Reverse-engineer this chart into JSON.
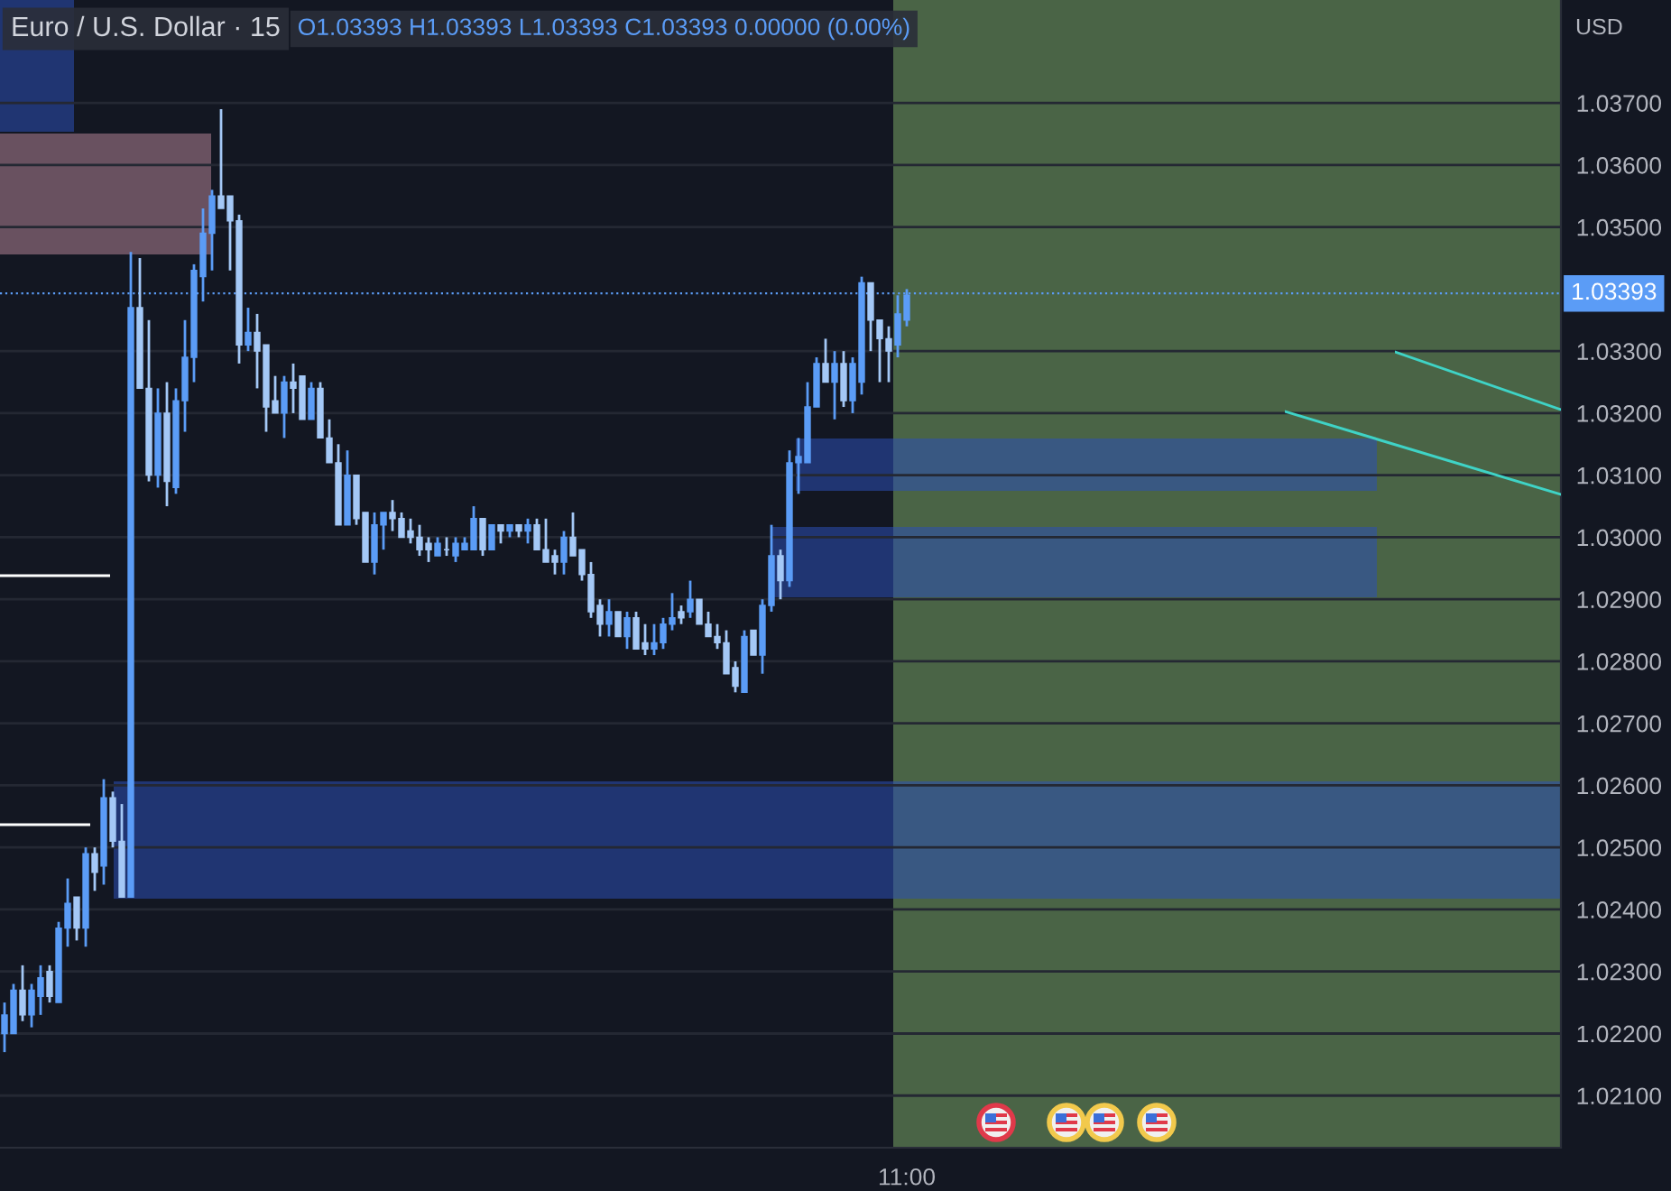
{
  "chart_data": {
    "type": "candlestick",
    "title": "Euro / U.S. Dollar · 15",
    "annotations": [
      "O1.03393 H1.03393 L1.03393 C1.03393 0.00000 (0.00%)"
    ],
    "ylabel": "USD",
    "categories": [
      null,
      null,
      null,
      null,
      null,
      null,
      null,
      null,
      null,
      null,
      null,
      null,
      null,
      null,
      null,
      null,
      null,
      null,
      null,
      null,
      null,
      null,
      null,
      null,
      null,
      null,
      null,
      null,
      null,
      null,
      null,
      null,
      null,
      null,
      null,
      null,
      null,
      null,
      null,
      null,
      null,
      null,
      null,
      null,
      null,
      null,
      null,
      null,
      null,
      null,
      null,
      null,
      null,
      null,
      null,
      null,
      null,
      null,
      null,
      null,
      null,
      null,
      null,
      null,
      null,
      null,
      null,
      null,
      null,
      null,
      null,
      null,
      null,
      null,
      null,
      null,
      null,
      null,
      null,
      null,
      null,
      null,
      null,
      null,
      null,
      null,
      null,
      null,
      null,
      null,
      null,
      null,
      null,
      null,
      null,
      null,
      null,
      null,
      null,
      null,
      "11:00",
      null,
      null,
      null,
      null,
      null,
      null,
      null,
      null,
      null,
      null,
      null,
      null,
      null,
      null,
      null,
      null,
      null,
      null,
      null,
      null,
      null,
      null,
      null,
      null,
      null,
      null,
      null,
      null,
      null,
      null,
      null,
      null,
      null,
      null,
      null,
      null,
      null,
      null,
      null,
      null,
      null,
      null,
      null,
      null,
      null,
      null,
      null,
      null,
      null,
      null,
      null,
      null,
      null,
      null,
      null,
      null,
      null,
      null,
      null,
      null,
      null,
      null,
      null,
      null,
      null,
      null,
      null,
      null,
      null,
      null,
      null,
      null
    ],
    "ohlc": [
      [
        1.022,
        1.0225,
        1.0217,
        1.0223
      ],
      [
        1.022,
        1.0228,
        1.022,
        1.0227
      ],
      [
        1.0227,
        1.0231,
        1.0222,
        1.0223
      ],
      [
        1.0223,
        1.0228,
        1.0221,
        1.0227
      ],
      [
        1.0226,
        1.0231,
        1.0223,
        1.0229
      ],
      [
        1.023,
        1.0231,
        1.0225,
        1.0226
      ],
      [
        1.0225,
        1.0238,
        1.0225,
        1.0237
      ],
      [
        1.0237,
        1.0245,
        1.0234,
        1.0241
      ],
      [
        1.0242,
        1.0242,
        1.0235,
        1.0237
      ],
      [
        1.0237,
        1.025,
        1.0234,
        1.0249
      ],
      [
        1.0249,
        1.025,
        1.0243,
        1.0246
      ],
      [
        1.0247,
        1.0261,
        1.0244,
        1.0258
      ],
      [
        1.0258,
        1.0259,
        1.025,
        1.0251
      ],
      [
        1.0251,
        1.0257,
        1.0242,
        1.0242
      ],
      [
        1.0242,
        1.0346,
        1.0242,
        1.0337
      ],
      [
        1.0337,
        1.0345,
        1.0324,
        1.0324
      ],
      [
        1.0324,
        1.0335,
        1.0309,
        1.031
      ],
      [
        1.031,
        1.0324,
        1.0308,
        1.032
      ],
      [
        1.032,
        1.0325,
        1.0305,
        1.0309
      ],
      [
        1.0308,
        1.0324,
        1.0307,
        1.0322
      ],
      [
        1.0322,
        1.0335,
        1.0317,
        1.0329
      ],
      [
        1.0329,
        1.0344,
        1.0325,
        1.0343
      ],
      [
        1.0342,
        1.0353,
        1.0338,
        1.0349
      ],
      [
        1.0349,
        1.0356,
        1.0343,
        1.0355
      ],
      [
        1.0355,
        1.0369,
        1.0353,
        1.0353
      ],
      [
        1.0355,
        1.0355,
        1.0343,
        1.0351
      ],
      [
        1.0351,
        1.0352,
        1.0328,
        1.0331
      ],
      [
        1.0331,
        1.0337,
        1.033,
        1.0333
      ],
      [
        1.0333,
        1.0336,
        1.0324,
        1.033
      ],
      [
        1.0331,
        1.0331,
        1.0317,
        1.0321
      ],
      [
        1.0322,
        1.0326,
        1.032,
        1.032
      ],
      [
        1.032,
        1.0326,
        1.0316,
        1.0325
      ],
      [
        1.0325,
        1.0328,
        1.032,
        1.0324
      ],
      [
        1.0326,
        1.0326,
        1.0319,
        1.0319
      ],
      [
        1.0319,
        1.0325,
        1.0319,
        1.0324
      ],
      [
        1.0324,
        1.0325,
        1.0316,
        1.0316
      ],
      [
        1.0316,
        1.0319,
        1.0312,
        1.0312
      ],
      [
        1.0312,
        1.0315,
        1.0302,
        1.0302
      ],
      [
        1.0302,
        1.0314,
        1.0302,
        1.031
      ],
      [
        1.031,
        1.031,
        1.0302,
        1.0303
      ],
      [
        1.0304,
        1.0304,
        1.0296,
        1.0296
      ],
      [
        1.0296,
        1.0304,
        1.0294,
        1.0302
      ],
      [
        1.0302,
        1.0304,
        1.0298,
        1.0304
      ],
      [
        1.0304,
        1.0306,
        1.0301,
        1.0303
      ],
      [
        1.0303,
        1.0304,
        1.03,
        1.03
      ],
      [
        1.0301,
        1.0303,
        1.0299,
        1.03
      ],
      [
        1.03,
        1.0302,
        1.0297,
        1.0298
      ],
      [
        1.0299,
        1.03,
        1.0296,
        1.0298
      ],
      [
        1.0297,
        1.03,
        1.0297,
        1.0299
      ],
      [
        1.0298,
        1.03,
        1.0297,
        1.0298
      ],
      [
        1.0297,
        1.03,
        1.0296,
        1.0299
      ],
      [
        1.0298,
        1.03,
        1.0298,
        1.0299
      ],
      [
        1.0298,
        1.0305,
        1.0298,
        1.0303
      ],
      [
        1.0303,
        1.0303,
        1.0297,
        1.0298
      ],
      [
        1.0298,
        1.0302,
        1.0298,
        1.0302
      ],
      [
        1.0302,
        1.0302,
        1.0299,
        1.0301
      ],
      [
        1.0301,
        1.0302,
        1.03,
        1.0302
      ],
      [
        1.0302,
        1.0302,
        1.03,
        1.0301
      ],
      [
        1.0301,
        1.0303,
        1.0299,
        1.0302
      ],
      [
        1.0302,
        1.0303,
        1.0298,
        1.0298
      ],
      [
        1.0298,
        1.0303,
        1.0296,
        1.0296
      ],
      [
        1.0297,
        1.0298,
        1.0294,
        1.0296
      ],
      [
        1.0296,
        1.0301,
        1.0294,
        1.03
      ],
      [
        1.03,
        1.0304,
        1.0297,
        1.0297
      ],
      [
        1.0298,
        1.0298,
        1.0293,
        1.0294
      ],
      [
        1.0294,
        1.0296,
        1.0287,
        1.0288
      ],
      [
        1.0289,
        1.029,
        1.0284,
        1.0286
      ],
      [
        1.0286,
        1.029,
        1.0284,
        1.0288
      ],
      [
        1.0288,
        1.0288,
        1.0284,
        1.0284
      ],
      [
        1.0284,
        1.0288,
        1.0282,
        1.0287
      ],
      [
        1.0287,
        1.0288,
        1.0282,
        1.0282
      ],
      [
        1.0283,
        1.0286,
        1.0281,
        1.0282
      ],
      [
        1.0282,
        1.0286,
        1.0281,
        1.0283
      ],
      [
        1.0283,
        1.0287,
        1.0282,
        1.0286
      ],
      [
        1.0286,
        1.0291,
        1.0285,
        1.0287
      ],
      [
        1.0288,
        1.0289,
        1.0286,
        1.0287
      ],
      [
        1.0288,
        1.0293,
        1.0287,
        1.029
      ],
      [
        1.029,
        1.029,
        1.0286,
        1.0286
      ],
      [
        1.0286,
        1.0288,
        1.0284,
        1.0284
      ],
      [
        1.0284,
        1.0286,
        1.0282,
        1.0283
      ],
      [
        1.0283,
        1.0285,
        1.0278,
        1.0278
      ],
      [
        1.0279,
        1.028,
        1.0275,
        1.0276
      ],
      [
        1.0275,
        1.0285,
        1.0275,
        1.0284
      ],
      [
        1.0285,
        1.0285,
        1.0281,
        1.0281
      ],
      [
        1.0281,
        1.029,
        1.0278,
        1.0289
      ],
      [
        1.0289,
        1.0302,
        1.0288,
        1.0297
      ],
      [
        1.0297,
        1.0298,
        1.029,
        1.0293
      ],
      [
        1.0293,
        1.0314,
        1.0292,
        1.0312
      ],
      [
        1.0312,
        1.0316,
        1.0307,
        1.0313
      ],
      [
        1.0312,
        1.0325,
        1.0312,
        1.0321
      ],
      [
        1.0321,
        1.0329,
        1.0321,
        1.0328
      ],
      [
        1.0328,
        1.0332,
        1.0325,
        1.0325
      ],
      [
        1.0325,
        1.033,
        1.0319,
        1.0328
      ],
      [
        1.0328,
        1.033,
        1.0321,
        1.0322
      ],
      [
        1.0322,
        1.0329,
        1.032,
        1.0328
      ],
      [
        1.0325,
        1.0342,
        1.0323,
        1.0341
      ],
      [
        1.0341,
        1.0341,
        1.033,
        1.0335
      ],
      [
        1.0335,
        1.0335,
        1.0325,
        1.0332
      ],
      [
        1.0332,
        1.0334,
        1.0325,
        1.033
      ],
      [
        1.0331,
        1.0339,
        1.0329,
        1.0336
      ],
      [
        1.0335,
        1.034,
        1.0334,
        1.0339
      ],
      null,
      null,
      null,
      null,
      null,
      null,
      null,
      null,
      null,
      null,
      null,
      null,
      null,
      null,
      null,
      null,
      null,
      null,
      null,
      null,
      null,
      null,
      null,
      null,
      null,
      null,
      null,
      null,
      null,
      null,
      null,
      null,
      null,
      null,
      null,
      null,
      null,
      null,
      null,
      null,
      null,
      null,
      null,
      null,
      null,
      null,
      null,
      null,
      null,
      null,
      null,
      null,
      null,
      null,
      null,
      null,
      null,
      null,
      null,
      null,
      null,
      null,
      null,
      null,
      null,
      null,
      null,
      null,
      null,
      null,
      null,
      null
    ],
    "colors": [
      "#5b9cf6",
      "#5b9cf6",
      "#a4c8f6",
      "#5b9cf6",
      "#5b9cf6",
      "#a4c8f6",
      "#5b9cf6",
      "#5b9cf6",
      "#a4c8f6",
      "#5b9cf6",
      "#a4c8f6",
      "#5b9cf6",
      "#a4c8f6",
      "#a4c8f6",
      "#5b9cf6",
      "#a4c8f6",
      "#a4c8f6",
      "#5b9cf6",
      "#a4c8f6",
      "#5b9cf6",
      "#5b9cf6",
      "#5b9cf6",
      "#5b9cf6",
      "#5b9cf6",
      "#a4c8f6",
      "#a4c8f6",
      "#a4c8f6",
      "#5b9cf6",
      "#a4c8f6",
      "#a4c8f6",
      "#a4c8f6",
      "#5b9cf6",
      "#a4c8f6",
      "#a4c8f6",
      "#5b9cf6",
      "#a4c8f6",
      "#a4c8f6",
      "#a4c8f6",
      "#5b9cf6",
      "#a4c8f6",
      "#a4c8f6",
      "#5b9cf6",
      "#5b9cf6",
      "#a4c8f6",
      "#a4c8f6",
      "#a4c8f6",
      "#a4c8f6",
      "#a4c8f6",
      "#5b9cf6",
      "#a4c8f6",
      "#5b9cf6",
      "#5b9cf6",
      "#5b9cf6",
      "#a4c8f6",
      "#5b9cf6",
      "#a4c8f6",
      "#5b9cf6",
      "#a4c8f6",
      "#5b9cf6",
      "#a4c8f6",
      "#a4c8f6",
      "#a4c8f6",
      "#5b9cf6",
      "#a4c8f6",
      "#a4c8f6",
      "#a4c8f6",
      "#a4c8f6",
      "#5b9cf6",
      "#a4c8f6",
      "#5b9cf6",
      "#a4c8f6",
      "#a4c8f6",
      "#5b9cf6",
      "#5b9cf6",
      "#5b9cf6",
      "#a4c8f6",
      "#5b9cf6",
      "#a4c8f6",
      "#a4c8f6",
      "#a4c8f6",
      "#a4c8f6",
      "#a4c8f6",
      "#5b9cf6",
      "#a4c8f6",
      "#5b9cf6",
      "#5b9cf6",
      "#a4c8f6",
      "#5b9cf6",
      "#5b9cf6",
      "#5b9cf6",
      "#5b9cf6",
      "#a4c8f6",
      "#5b9cf6",
      "#a4c8f6",
      "#5b9cf6",
      "#5b9cf6",
      "#a4c8f6",
      "#a4c8f6",
      "#a4c8f6",
      "#5b9cf6",
      "#5b9cf6",
      null,
      null,
      null,
      null,
      null,
      null,
      null,
      null,
      null,
      null,
      null,
      null,
      null,
      null,
      null,
      null,
      null,
      null,
      null,
      null,
      null,
      null,
      null,
      null,
      null,
      null,
      null,
      null,
      null,
      null,
      null,
      null,
      null,
      null,
      null,
      null,
      null,
      null,
      null,
      null,
      null,
      null,
      null,
      null,
      null,
      null,
      null,
      null,
      null,
      null,
      null,
      null,
      null,
      null,
      null,
      null,
      null,
      null,
      null,
      null,
      null,
      null,
      null,
      null,
      null,
      null,
      null,
      null,
      null,
      null,
      null,
      null
    ],
    "ref_lines": [
      {
        "axis": "y",
        "value": 1.03393,
        "label": "1.03393",
        "color": "#5b9cf6",
        "line_style": "dotted"
      }
    ],
    "ylim": [
      1.02016,
      1.03866
    ],
    "yticks": [
      {
        "value": 1.021,
        "label": "1.02100"
      },
      {
        "value": 1.022,
        "label": "1.02200"
      },
      {
        "value": 1.023,
        "label": "1.02300"
      },
      {
        "value": 1.024,
        "label": "1.02400"
      },
      {
        "value": 1.025,
        "label": "1.02500"
      },
      {
        "value": 1.026,
        "label": "1.02600"
      },
      {
        "value": 1.027,
        "label": "1.02700"
      },
      {
        "value": 1.028,
        "label": "1.02800"
      },
      {
        "value": 1.029,
        "label": "1.02900"
      },
      {
        "value": 1.03,
        "label": "1.03000"
      },
      {
        "value": 1.031,
        "label": "1.03100"
      },
      {
        "value": 1.032,
        "label": "1.03200"
      },
      {
        "value": 1.033,
        "label": "1.03300"
      },
      {
        "value": 1.035,
        "label": "1.03500"
      },
      {
        "value": 1.036,
        "label": "1.03600"
      },
      {
        "value": 1.037,
        "label": "1.03700"
      }
    ],
    "grid": "y"
  }
}
